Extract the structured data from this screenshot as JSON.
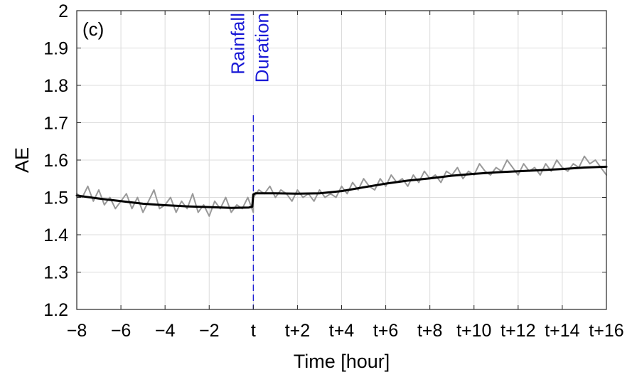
{
  "chart_data": {
    "type": "line",
    "panel_label": "(c)",
    "xlabel": "Time [hour]",
    "ylabel": "AE",
    "xlim": [
      -8,
      16
    ],
    "ylim": [
      1.2,
      2.0
    ],
    "grid": true,
    "x_ticks": [
      {
        "value": -8,
        "label": "−8"
      },
      {
        "value": -6,
        "label": "−6"
      },
      {
        "value": -4,
        "label": "−4"
      },
      {
        "value": -2,
        "label": "−2"
      },
      {
        "value": 0,
        "label": "t"
      },
      {
        "value": 2,
        "label": "t+2"
      },
      {
        "value": 4,
        "label": "t+4"
      },
      {
        "value": 6,
        "label": "t+6"
      },
      {
        "value": 8,
        "label": "t+8"
      },
      {
        "value": 10,
        "label": "t+10"
      },
      {
        "value": 12,
        "label": "t+12"
      },
      {
        "value": 14,
        "label": "t+14"
      },
      {
        "value": 16,
        "label": "t+16"
      }
    ],
    "y_ticks": [
      {
        "value": 1.2,
        "label": "1.2"
      },
      {
        "value": 1.3,
        "label": "1.3"
      },
      {
        "value": 1.4,
        "label": "1.4"
      },
      {
        "value": 1.5,
        "label": "1.5"
      },
      {
        "value": 1.6,
        "label": "1.6"
      },
      {
        "value": 1.7,
        "label": "1.7"
      },
      {
        "value": 1.8,
        "label": "1.8"
      },
      {
        "value": 1.9,
        "label": "1.9"
      },
      {
        "value": 2.0,
        "label": "2"
      }
    ],
    "annotation": {
      "x": 0,
      "lines": [
        "Rainfall",
        "Duration"
      ],
      "color": "#1a1ad6",
      "line_y_range": [
        1.2,
        1.72
      ]
    },
    "series": [
      {
        "style": "raw",
        "color": "#999999",
        "x": [
          -8,
          -7.75,
          -7.5,
          -7.25,
          -7,
          -6.75,
          -6.5,
          -6.25,
          -6,
          -5.75,
          -5.5,
          -5.25,
          -5,
          -4.75,
          -4.5,
          -4.25,
          -4,
          -3.75,
          -3.5,
          -3.25,
          -3,
          -2.75,
          -2.5,
          -2.25,
          -2,
          -1.75,
          -1.5,
          -1.25,
          -1,
          -0.75,
          -0.5,
          -0.25,
          0,
          0,
          0.25,
          0.5,
          0.75,
          1,
          1.25,
          1.5,
          1.75,
          2,
          2.25,
          2.5,
          2.75,
          3,
          3.25,
          3.5,
          3.75,
          4,
          4.25,
          4.5,
          4.75,
          5,
          5.25,
          5.5,
          5.75,
          6,
          6.25,
          6.5,
          6.75,
          7,
          7.25,
          7.5,
          7.75,
          8,
          8.25,
          8.5,
          8.75,
          9,
          9.25,
          9.5,
          9.75,
          10,
          10.25,
          10.5,
          10.75,
          11,
          11.25,
          11.5,
          11.75,
          12,
          12.25,
          12.5,
          12.75,
          13,
          13.25,
          13.5,
          13.75,
          14,
          14.25,
          14.5,
          14.75,
          15,
          15.25,
          15.5,
          15.75,
          16
        ],
        "y": [
          1.51,
          1.5,
          1.53,
          1.49,
          1.52,
          1.48,
          1.5,
          1.47,
          1.49,
          1.51,
          1.47,
          1.5,
          1.46,
          1.49,
          1.52,
          1.47,
          1.48,
          1.5,
          1.46,
          1.49,
          1.47,
          1.51,
          1.46,
          1.48,
          1.45,
          1.49,
          1.47,
          1.5,
          1.46,
          1.48,
          1.47,
          1.5,
          1.46,
          1.5,
          1.52,
          1.51,
          1.53,
          1.5,
          1.52,
          1.51,
          1.49,
          1.52,
          1.5,
          1.51,
          1.49,
          1.52,
          1.5,
          1.51,
          1.5,
          1.53,
          1.51,
          1.54,
          1.52,
          1.55,
          1.53,
          1.52,
          1.55,
          1.53,
          1.56,
          1.54,
          1.55,
          1.53,
          1.56,
          1.54,
          1.57,
          1.55,
          1.56,
          1.54,
          1.57,
          1.56,
          1.58,
          1.55,
          1.57,
          1.56,
          1.59,
          1.57,
          1.56,
          1.58,
          1.57,
          1.6,
          1.58,
          1.56,
          1.59,
          1.57,
          1.58,
          1.56,
          1.59,
          1.57,
          1.6,
          1.58,
          1.57,
          1.59,
          1.58,
          1.61,
          1.59,
          1.6,
          1.58,
          1.56
        ]
      },
      {
        "style": "smoothed",
        "color": "#000000",
        "x": [
          -8,
          -7,
          -6,
          -5,
          -4,
          -3,
          -2,
          -1,
          -0.2,
          -0.05,
          0,
          0.1,
          1,
          2,
          3,
          4,
          5,
          6,
          7,
          8,
          9,
          10,
          11,
          12,
          13,
          14,
          15,
          16
        ],
        "y": [
          1.505,
          1.497,
          1.49,
          1.483,
          1.479,
          1.476,
          1.474,
          1.472,
          1.473,
          1.475,
          1.508,
          1.511,
          1.511,
          1.51,
          1.511,
          1.517,
          1.527,
          1.537,
          1.545,
          1.551,
          1.558,
          1.563,
          1.567,
          1.57,
          1.573,
          1.576,
          1.58,
          1.582
        ]
      }
    ]
  }
}
